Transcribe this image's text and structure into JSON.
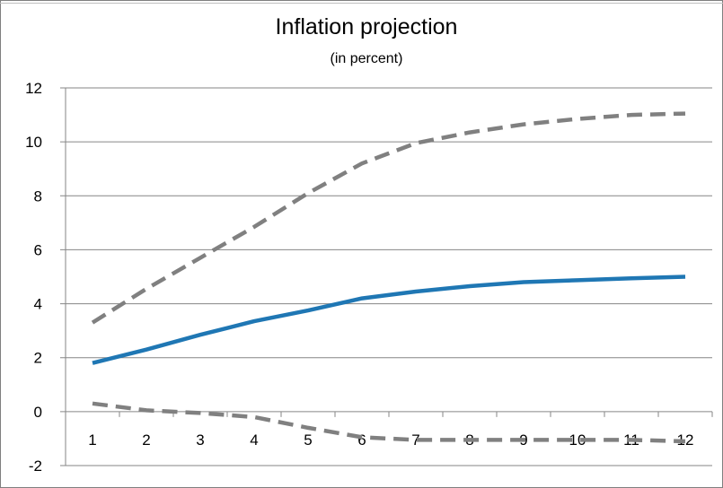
{
  "chart_data": {
    "type": "line",
    "title": "Inflation projection",
    "subtitle": "(in percent)",
    "xlabel": "",
    "ylabel": "",
    "x": [
      1,
      2,
      3,
      4,
      5,
      6,
      7,
      8,
      9,
      10,
      11,
      12
    ],
    "ylim": [
      -2,
      12
    ],
    "yticks": [
      -2,
      0,
      2,
      4,
      6,
      8,
      10,
      12
    ],
    "grid": true,
    "legend": "none",
    "series": [
      {
        "style": "solid",
        "color": "#1f77b4",
        "values": [
          1.8,
          2.3,
          2.85,
          3.35,
          3.75,
          4.2,
          4.45,
          4.65,
          4.8,
          4.87,
          4.94,
          5.0
        ]
      },
      {
        "style": "dashed",
        "color": "#808080",
        "values": [
          3.3,
          4.55,
          5.7,
          6.85,
          8.1,
          9.2,
          9.95,
          10.35,
          10.65,
          10.85,
          11.0,
          11.05
        ]
      },
      {
        "style": "dashed",
        "color": "#808080",
        "values": [
          0.3,
          0.05,
          -0.05,
          -0.2,
          -0.6,
          -0.95,
          -1.05,
          -1.05,
          -1.05,
          -1.05,
          -1.05,
          -1.1
        ]
      }
    ]
  }
}
